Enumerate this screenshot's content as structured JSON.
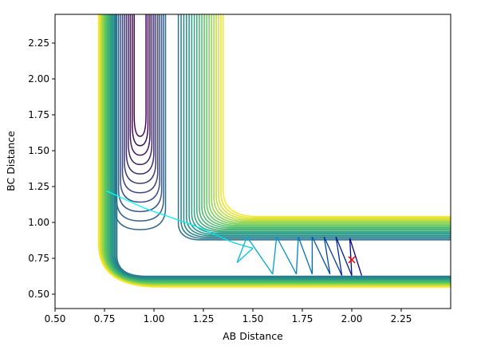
{
  "chart_data": {
    "type": "contour",
    "title": "",
    "xlabel": "AB Distance",
    "ylabel": "BC Distance",
    "xlim": [
      0.5,
      2.5
    ],
    "ylim": [
      0.4,
      2.45
    ],
    "xticks": [
      0.5,
      0.75,
      1.0,
      1.25,
      1.5,
      1.75,
      2.0,
      2.25
    ],
    "xtick_labels": [
      "0.50",
      "0.75",
      "1.00",
      "1.25",
      "1.50",
      "1.75",
      "2.00",
      "2.25"
    ],
    "yticks": [
      0.5,
      0.75,
      1.0,
      1.25,
      1.5,
      1.75,
      2.0,
      2.25
    ],
    "ytick_labels": [
      "0.50",
      "0.75",
      "1.00",
      "1.25",
      "1.50",
      "1.75",
      "2.00",
      "2.25"
    ],
    "grid": false,
    "colormap": [
      "#440154",
      "#3b528b",
      "#21918c",
      "#5ec962",
      "#fde725"
    ],
    "surface": {
      "description_shape": "L-shaped potential energy surface valley",
      "min_AB": 0.74,
      "min_BC": 0.74,
      "levels": 30
    },
    "trajectory": {
      "color_start": "#00ffff",
      "color_end": "#000080",
      "points": [
        [
          0.76,
          1.22
        ],
        [
          0.95,
          1.1
        ],
        [
          1.2,
          0.98
        ],
        [
          1.4,
          0.86
        ],
        [
          1.5,
          0.82
        ],
        [
          1.42,
          0.72
        ],
        [
          1.47,
          0.9
        ],
        [
          1.6,
          0.64
        ],
        [
          1.62,
          0.9
        ],
        [
          1.72,
          0.64
        ],
        [
          1.73,
          0.9
        ],
        [
          1.8,
          0.64
        ],
        [
          1.8,
          0.9
        ],
        [
          1.89,
          0.64
        ],
        [
          1.86,
          0.9
        ],
        [
          1.95,
          0.63
        ],
        [
          1.92,
          0.9
        ],
        [
          2.0,
          0.63
        ],
        [
          1.99,
          0.89
        ],
        [
          2.05,
          0.63
        ]
      ]
    },
    "marker": {
      "x": 2.0,
      "y": 0.74,
      "symbol": "x",
      "color": "#ff0000"
    }
  }
}
